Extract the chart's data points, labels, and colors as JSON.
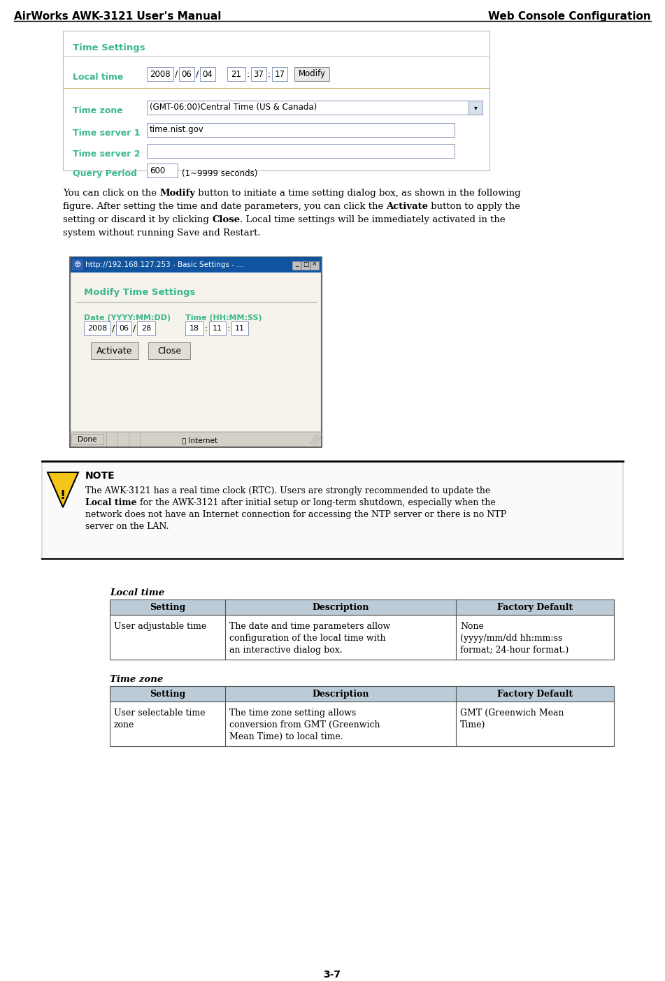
{
  "header_left": "AirWorks AWK-3121 User's Manual",
  "header_right": "Web Console Configuration",
  "teal_color": "#3CB88A",
  "black_color": "#000000",
  "bg_color": "#ffffff",
  "section_title": "Time Settings",
  "local_time_label": "Local time",
  "timezone_label": "Time zone",
  "timezone_value": "(GMT-06:00)Central Time (US & Canada)",
  "server1_label": "Time server 1",
  "server1_value": "time.nist.gov",
  "server2_label": "Time server 2",
  "query_label": "Query Period",
  "query_value": "600",
  "query_suffix": "(1~9999 seconds)",
  "dialog_title_bar": "http://192.168.127.253 - Basic Settings - ...",
  "dialog_heading": "Modify Time Settings",
  "dialog_date_label": "Date (YYYY:MM:DD)",
  "dialog_time_label": "Time (HH:MM:SS)",
  "table1_title": "Local time",
  "table1_headers": [
    "Setting",
    "Description",
    "Factory Default"
  ],
  "table1_row": [
    "User adjustable time",
    "The date and time parameters allow\nconfiguration of the local time with\nan interactive dialog box.",
    "None\n(yyyy/mm/dd hh:mm:ss\nformat; 24-hour format.)"
  ],
  "table2_title": "Time zone",
  "table2_headers": [
    "Setting",
    "Description",
    "Factory Default"
  ],
  "table2_row": [
    "User selectable time\nzone",
    "The time zone setting allows\nconversion from GMT (Greenwich\nMean Time) to local time.",
    "GMT (Greenwich Mean\nTime)"
  ],
  "footer_text": "3-7",
  "note_border_top": "#000000",
  "table_header_bg": "#BBCCD8",
  "input_border": "#8899BB"
}
